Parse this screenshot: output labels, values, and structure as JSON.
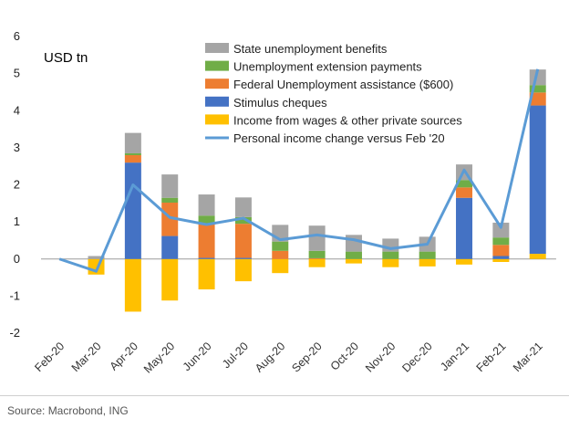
{
  "chart_data": {
    "type": "bar",
    "stacked": true,
    "unit_label": "USD tn",
    "categories": [
      "Feb-20",
      "Mar-20",
      "Apr-20",
      "May-20",
      "Jun-20",
      "Jul-20",
      "Aug-20",
      "Sep-20",
      "Oct-20",
      "Nov-20",
      "Dec-20",
      "Jan-21",
      "Feb-21",
      "Mar-21"
    ],
    "ylim": [
      -2,
      6
    ],
    "yticks": [
      -2,
      -1,
      0,
      1,
      2,
      3,
      4,
      5,
      6
    ],
    "grid": false,
    "legend_position": "top",
    "series": [
      {
        "name": "Income from wages & other private sources",
        "color": "#FFC000",
        "values": [
          0,
          -0.42,
          -1.42,
          -1.12,
          -0.82,
          -0.6,
          -0.38,
          -0.22,
          -0.12,
          -0.22,
          -0.2,
          -0.15,
          -0.08,
          0.14
        ]
      },
      {
        "name": "Stimulus cheques",
        "color": "#4472C4",
        "values": [
          0,
          0,
          2.6,
          0.62,
          0.03,
          0.03,
          0,
          0,
          0,
          0,
          0,
          1.65,
          0.08,
          4.0
        ]
      },
      {
        "name": "Federal Unemployment assistance ($600)",
        "color": "#ED7D31",
        "values": [
          0,
          0,
          0.2,
          0.9,
          0.92,
          0.92,
          0.22,
          0.02,
          0,
          0,
          0,
          0.28,
          0.3,
          0.35
        ]
      },
      {
        "name": "Unemployment extension payments",
        "color": "#70AD47",
        "values": [
          0,
          0,
          0.05,
          0.13,
          0.22,
          0.18,
          0.25,
          0.2,
          0.2,
          0.2,
          0.2,
          0.2,
          0.2,
          0.2
        ]
      },
      {
        "name": "State unemployment benefits",
        "color": "#A5A5A5",
        "values": [
          0,
          0.08,
          0.55,
          0.63,
          0.57,
          0.53,
          0.45,
          0.68,
          0.45,
          0.35,
          0.4,
          0.42,
          0.4,
          0.42
        ]
      }
    ],
    "line": {
      "name": "Personal income change versus Feb '20",
      "color": "#5B9BD5",
      "values": [
        0,
        -0.33,
        2.0,
        1.12,
        0.93,
        1.1,
        0.52,
        0.65,
        0.52,
        0.28,
        0.4,
        2.4,
        0.85,
        5.12
      ]
    },
    "legend_order": [
      "State unemployment benefits",
      "Unemployment extension payments",
      "Federal Unemployment assistance ($600)",
      "Stimulus cheques",
      "Income from wages & other private sources",
      "Personal income change versus Feb '20"
    ]
  },
  "footer": {
    "source": "Source: Macrobond, ING"
  }
}
